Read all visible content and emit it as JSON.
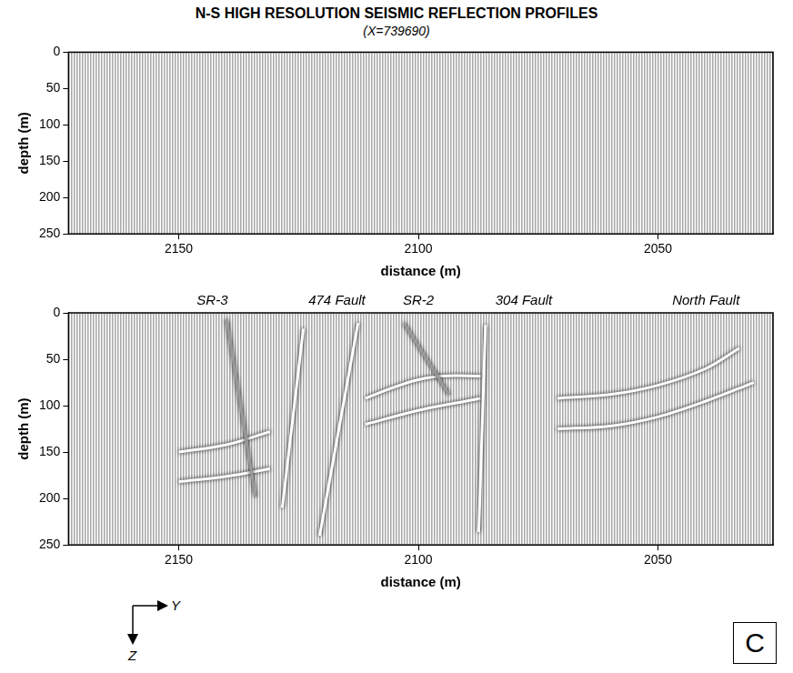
{
  "title": "N-S HIGH RESOLUTION SEISMIC REFLECTION PROFILES",
  "subtitle": "(X=739690)",
  "panel_label": "C",
  "axis_arrows": {
    "horizontal": "Y",
    "vertical": "Z"
  },
  "chart_data": [
    {
      "type": "line",
      "x_label": "distance (m)",
      "y_label": "depth (m)",
      "xlim": [
        2173,
        2026
      ],
      "ylim": [
        250,
        0
      ],
      "xticks": [
        2050,
        2100,
        2150
      ],
      "yticks": [
        0,
        50,
        100,
        150,
        200,
        250
      ],
      "series": []
    },
    {
      "type": "line",
      "x_label": "distance (m)",
      "y_label": "depth (m)",
      "xlim": [
        2173,
        2026
      ],
      "ylim": [
        250,
        0
      ],
      "xticks": [
        2050,
        2100,
        2150
      ],
      "yticks": [
        0,
        50,
        100,
        150,
        200,
        250
      ],
      "annotations": [
        {
          "text": "SR-3",
          "x": 2143
        },
        {
          "text": "474 Fault",
          "x": 2117
        },
        {
          "text": "SR-2",
          "x": 2100
        },
        {
          "text": "304 Fault",
          "x": 2078
        },
        {
          "text": "North Fault",
          "x": 2040
        }
      ],
      "series": [
        {
          "color": "#9a9a9a",
          "line_style": "solid",
          "x": [
            2140,
            2134
          ],
          "values": [
            7,
            198
          ]
        },
        {
          "color": "#ffffff",
          "line_style": "solid",
          "x": [
            2124,
            2128.4
          ],
          "values": [
            17,
            210
          ]
        },
        {
          "color": "#ffffff",
          "line_style": "solid",
          "x": [
            2112.6,
            2120.6
          ],
          "values": [
            11,
            240
          ]
        },
        {
          "color": "#9a9a9a",
          "line_style": "solid",
          "x": [
            2103,
            2093.6
          ],
          "values": [
            11,
            88
          ]
        },
        {
          "color": "#ffffff",
          "line_style": "solid",
          "x": [
            2086,
            2087.4
          ],
          "values": [
            13,
            236
          ]
        },
        {
          "color": "#ffffff",
          "line_style": "solid",
          "x": [
            2150,
            2140,
            2131
          ],
          "values": [
            150,
            142,
            128
          ]
        },
        {
          "color": "#ffffff",
          "line_style": "solid",
          "x": [
            2150,
            2140,
            2131
          ],
          "values": [
            182,
            176,
            168
          ]
        },
        {
          "color": "#ffffff",
          "line_style": "solid",
          "x": [
            2111,
            2105,
            2100,
            2095,
            2087
          ],
          "values": [
            92,
            80,
            72,
            68,
            68
          ]
        },
        {
          "color": "#ffffff",
          "line_style": "solid",
          "x": [
            2111,
            2100,
            2090,
            2087
          ],
          "values": [
            120,
            105,
            95,
            92
          ]
        },
        {
          "color": "#ffffff",
          "line_style": "solid",
          "x": [
            2071,
            2060,
            2050,
            2040,
            2033
          ],
          "values": [
            92,
            88,
            78,
            60,
            38
          ]
        },
        {
          "color": "#ffffff",
          "line_style": "solid",
          "x": [
            2071,
            2060,
            2050,
            2040,
            2030
          ],
          "values": [
            125,
            122,
            112,
            95,
            75
          ]
        }
      ]
    }
  ]
}
